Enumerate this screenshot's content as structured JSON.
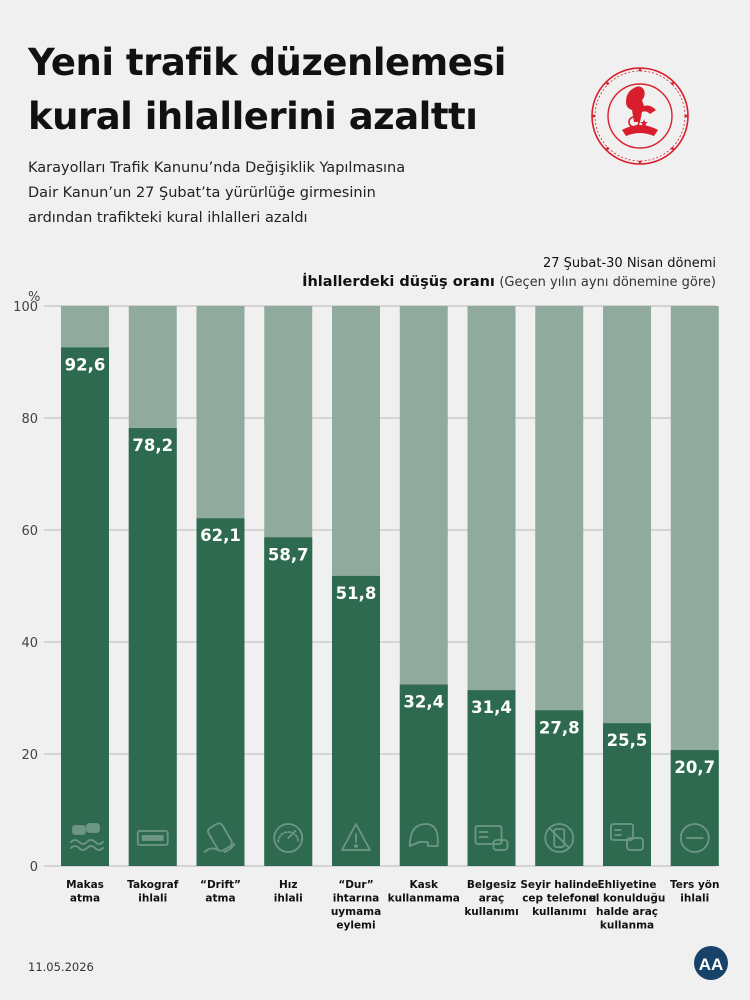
{
  "header": {
    "title_line1": "Yeni trafik düzenlemesi",
    "title_line2": "kural ihlallerini azalttı",
    "subtitle_line1": "Karayolları Trafik Kanunu’nda Değişiklik Yapılmasına",
    "subtitle_line2": "Dair Kanun’un 27 Şubat’ta yürürlüğe girmesinin",
    "subtitle_line3": "ardından trafikteki kural ihlalleri azaldı"
  },
  "legend": {
    "period": "27 Şubat-30 Nisan dönemi",
    "metric": "İhlallerdeki düşüş oranı",
    "note": "(Geçen yılın aynı dönemine göre)"
  },
  "footer": {
    "date": "11.05.2026",
    "logo": "AA"
  },
  "colors": {
    "bar": "#2e6a4f",
    "track": "#90ab9d",
    "background": "#f0f0f0",
    "seal": "#d81e2c"
  },
  "chart_data": {
    "type": "bar",
    "ylabel": "%",
    "ylim": [
      0,
      100
    ],
    "yticks": [
      0,
      20,
      40,
      60,
      80,
      100
    ],
    "grid": true,
    "categories": [
      [
        "Makas",
        "atma"
      ],
      [
        "Takograf",
        "ihlali"
      ],
      [
        "“Drift”",
        "atma"
      ],
      [
        "Hız",
        "ihlali"
      ],
      [
        "“Dur”",
        "ihtarına",
        "uymama",
        "eylemi"
      ],
      [
        "Kask",
        "kullanmama"
      ],
      [
        "Belgesiz",
        "araç",
        "kullanımı"
      ],
      [
        "Seyir halinde",
        "cep telefonu",
        "kullanımı"
      ],
      [
        "Ehliyetine",
        "el konulduğu",
        "halde araç",
        "kullanma"
      ],
      [
        "Ters yön",
        "ihlali"
      ]
    ],
    "values": [
      92.6,
      78.2,
      62.1,
      58.7,
      51.8,
      32.4,
      31.4,
      27.8,
      25.5,
      20.7
    ],
    "value_labels": [
      "92,6",
      "78,2",
      "62,1",
      "58,7",
      "51,8",
      "32,4",
      "31,4",
      "27,8",
      "25,5",
      "20,7"
    ],
    "icons": [
      "skid-icon",
      "tachograph-icon",
      "drift-car-icon",
      "speedometer-icon",
      "warning-icon",
      "helmet-icon",
      "license-card-icon",
      "no-phone-icon",
      "seized-license-icon",
      "no-entry-icon"
    ]
  }
}
